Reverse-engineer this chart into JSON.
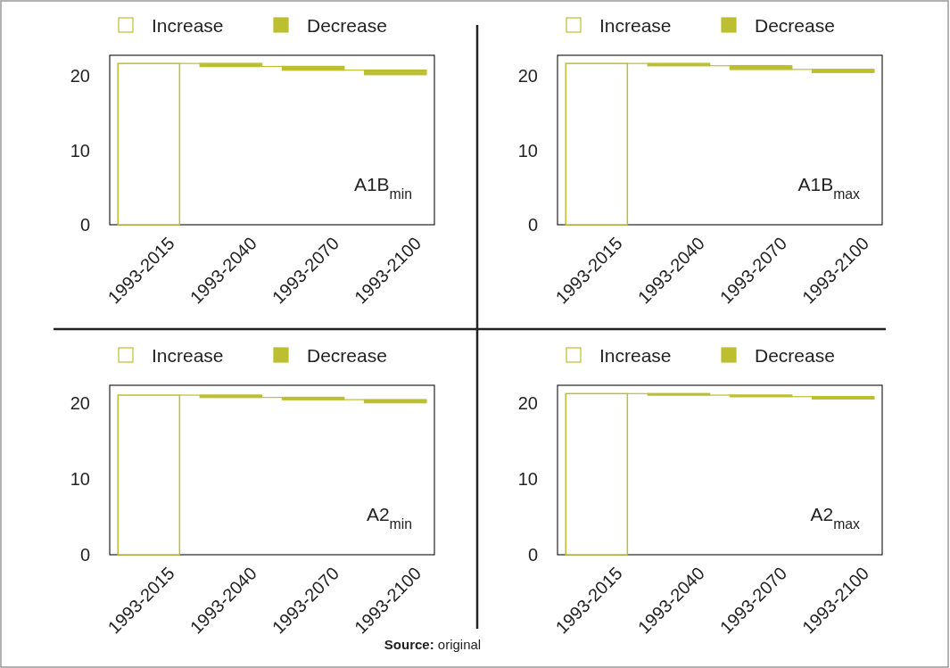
{
  "chart_data": [
    {
      "type": "bar",
      "categories": [
        "1993-2015",
        "1993-2040",
        "1993-2070",
        "1993-2100"
      ],
      "series": [
        {
          "name": "Increase",
          "color": "#ffffff",
          "values": [
            21.7,
            null,
            null,
            null
          ],
          "base": [
            0,
            null,
            null,
            null
          ]
        },
        {
          "name": "Decrease",
          "color": "#bcbf2f",
          "values": [
            null,
            -0.4,
            -0.5,
            -0.6
          ],
          "base": [
            null,
            21.7,
            21.3,
            20.8
          ]
        }
      ],
      "ylim": [
        0,
        22.8
      ],
      "yticks": [
        0,
        10,
        20
      ],
      "legend": "top",
      "annotations": [
        "A1B$_{min}$"
      ]
    },
    {
      "type": "bar",
      "categories": [
        "1993-2015",
        "1993-2040",
        "1993-2070",
        "1993-2100"
      ],
      "series": [
        {
          "name": "Increase",
          "color": "#ffffff",
          "values": [
            21.7,
            null,
            null,
            null
          ],
          "base": [
            0,
            null,
            null,
            null
          ]
        },
        {
          "name": "Decrease",
          "color": "#bcbf2f",
          "values": [
            null,
            -0.3,
            -0.5,
            -0.4
          ],
          "base": [
            null,
            21.7,
            21.4,
            20.9
          ]
        }
      ],
      "ylim": [
        0,
        22.8
      ],
      "yticks": [
        0,
        10,
        20
      ],
      "legend": "top",
      "annotations": [
        "A1B$_{max}$"
      ]
    },
    {
      "type": "bar",
      "categories": [
        "1993-2015",
        "1993-2040",
        "1993-2070",
        "1993-2100"
      ],
      "series": [
        {
          "name": "Increase",
          "color": "#ffffff",
          "values": [
            21.1,
            null,
            null,
            null
          ],
          "base": [
            0,
            null,
            null,
            null
          ]
        },
        {
          "name": "Decrease",
          "color": "#bcbf2f",
          "values": [
            null,
            -0.3,
            -0.3,
            -0.4
          ],
          "base": [
            null,
            21.1,
            20.8,
            20.5
          ]
        }
      ],
      "ylim": [
        0,
        22.4
      ],
      "yticks": [
        0,
        10,
        20
      ],
      "legend": "top",
      "annotations": [
        "A2$_{min}$",
        "Source: original"
      ]
    },
    {
      "type": "bar",
      "categories": [
        "1993-2015",
        "1993-2040",
        "1993-2070",
        "1993-2100"
      ],
      "series": [
        {
          "name": "Increase",
          "color": "#ffffff",
          "values": [
            21.3,
            null,
            null,
            null
          ],
          "base": [
            0,
            null,
            null,
            null
          ]
        },
        {
          "name": "Decrease",
          "color": "#bcbf2f",
          "values": [
            null,
            -0.2,
            -0.2,
            -0.3
          ],
          "base": [
            null,
            21.3,
            21.1,
            20.9
          ]
        }
      ],
      "ylim": [
        0,
        22.4
      ],
      "yticks": [
        0,
        10,
        20
      ],
      "legend": "top",
      "annotations": [
        "A2$_{max}$"
      ]
    }
  ]
}
